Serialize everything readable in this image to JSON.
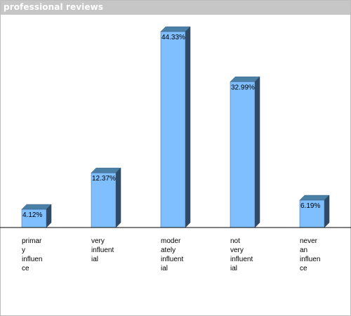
{
  "chart_data": {
    "type": "bar",
    "title": "professional reviews",
    "categories": [
      "primary influence",
      "very influential",
      "moderately influential",
      "not very influential",
      "never an influence"
    ],
    "category_lines": [
      [
        "primar",
        "y",
        "influen",
        "ce"
      ],
      [
        "very",
        "influent",
        "ial"
      ],
      [
        "moder",
        "ately",
        "influent",
        "ial"
      ],
      [
        "not",
        "very",
        "influent",
        "ial"
      ],
      [
        "never",
        "an",
        "influen",
        "ce"
      ]
    ],
    "values": [
      4.12,
      12.37,
      44.33,
      32.99,
      6.19
    ],
    "value_labels": [
      "4.12%",
      "12.37%",
      "44.33%",
      "32.99%",
      "6.19%"
    ],
    "ylim": [
      0,
      44.33
    ],
    "xlabel": "",
    "ylabel": "",
    "colors": {
      "bar_front": "#7fbfff",
      "bar_top": "#4a7fa6",
      "bar_side": "#2f4a66",
      "bar_edge": "#3b5f82",
      "baseline": "#000000",
      "titlebar": "#c6c6c6"
    }
  }
}
